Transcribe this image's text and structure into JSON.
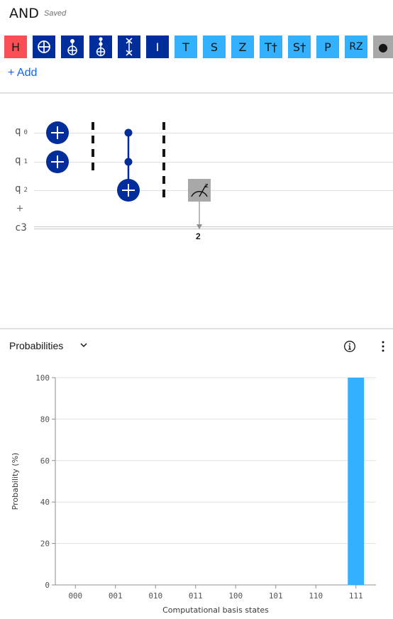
{
  "header": {
    "title": "AND",
    "status": "Saved"
  },
  "palette": {
    "gates": [
      {
        "label": "H",
        "style": "red",
        "icon": "h-gate"
      },
      {
        "label": "",
        "style": "dark",
        "icon": "cnot-icon"
      },
      {
        "label": "",
        "style": "dark",
        "icon": "toffoli-icon"
      },
      {
        "label": "",
        "style": "dark",
        "icon": "ccnot-icon"
      },
      {
        "label": "",
        "style": "dark",
        "icon": "swap-icon"
      },
      {
        "label": "I",
        "style": "dark",
        "icon": "identity-gate"
      },
      {
        "label": "T",
        "style": "light",
        "icon": "t-gate"
      },
      {
        "label": "S",
        "style": "light",
        "icon": "s-gate"
      },
      {
        "label": "Z",
        "style": "light",
        "icon": "z-gate"
      },
      {
        "label": "T†",
        "style": "light",
        "icon": "tdg-gate"
      },
      {
        "label": "S†",
        "style": "light",
        "icon": "sdg-gate"
      },
      {
        "label": "P",
        "style": "light",
        "icon": "p-gate"
      },
      {
        "label": "RZ",
        "style": "light",
        "icon": "rz-gate"
      },
      {
        "label": "●",
        "style": "gray",
        "icon": "control-dot-icon"
      }
    ],
    "add_label": "+ Add"
  },
  "circuit": {
    "qubits": [
      {
        "name": "q",
        "index": "0"
      },
      {
        "name": "q",
        "index": "1"
      },
      {
        "name": "q",
        "index": "2"
      }
    ],
    "add_qubit": "+",
    "classical_register": "c3",
    "measure_target": "2"
  },
  "viz": {
    "title": "Probabilities",
    "colors": {
      "bar": "#33b1ff",
      "grid": "#e0e0e0",
      "axis": "#8d8d8d"
    }
  },
  "chart_data": {
    "type": "bar",
    "categories": [
      "000",
      "001",
      "010",
      "011",
      "100",
      "101",
      "110",
      "111"
    ],
    "values": [
      0,
      0,
      0,
      0,
      0,
      0,
      0,
      100
    ],
    "title": "",
    "xlabel": "Computational basis states",
    "ylabel": "Probability (%)",
    "ylim": [
      0,
      100
    ],
    "yticks": [
      0,
      20,
      40,
      60,
      80,
      100
    ],
    "grid": true
  }
}
